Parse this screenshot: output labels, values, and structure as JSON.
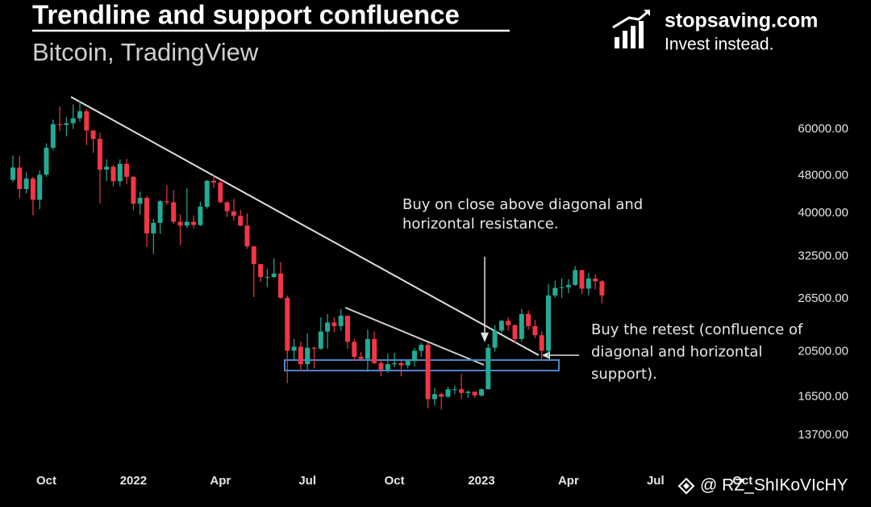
{
  "chart_data": {
    "type": "candlestick",
    "title": "Trendline and support confluence",
    "subtitle": "Bitcoin, TradingView",
    "brand": {
      "name": "stopsaving.com",
      "tagline": "Invest instead."
    },
    "watermark": "@ RZ_ShIKoVIcHY",
    "annotations": [
      {
        "lines": [
          "Buy on close above diagonal and",
          "horizontal resistance."
        ]
      },
      {
        "lines": [
          "Buy the retest (confluence of",
          "diagonal and horizontal",
          "support)."
        ]
      }
    ],
    "categories": [
      null,
      null,
      null,
      null,
      null,
      "Oct",
      null,
      null,
      null,
      null,
      null,
      null,
      null,
      null,
      null,
      null,
      null,
      null,
      "2022",
      null,
      null,
      null,
      null,
      null,
      null,
      null,
      null,
      null,
      null,
      null,
      null,
      "Apr",
      null,
      null,
      null,
      null,
      null,
      null,
      null,
      null,
      null,
      null,
      null,
      null,
      "Jul",
      null,
      null,
      null,
      null,
      null,
      null,
      null,
      null,
      null,
      null,
      null,
      null,
      "Oct",
      null,
      null,
      null,
      null,
      null,
      null,
      null,
      null,
      null,
      null,
      null,
      null,
      "2023",
      null,
      null,
      null,
      null,
      null,
      null,
      null,
      null,
      null,
      null,
      null,
      null,
      "Apr",
      null,
      null,
      null,
      null,
      null,
      null,
      null,
      null,
      null,
      null,
      null,
      null,
      "Jul",
      null,
      null,
      null,
      null,
      null,
      null,
      null,
      null,
      null,
      null,
      null,
      null,
      "Oct"
    ],
    "open": [
      47000,
      49900,
      45000,
      47300,
      42700,
      48200,
      54900,
      61500,
      61300,
      61800,
      63300,
      65500,
      59700,
      57300,
      49400,
      50100,
      46700,
      50800,
      47700,
      41900,
      43100,
      36300,
      38200,
      42400,
      42200,
      38400,
      37700,
      38400,
      37800,
      41300,
      46800,
      46400,
      42200,
      40400,
      39500,
      37700,
      34100,
      31300,
      29400,
      29400,
      29900,
      26600,
      20600,
      21000,
      19300,
      20900,
      20800,
      22600,
      23600,
      23200,
      24400,
      21500,
      20000,
      19800,
      21800,
      19400,
      18800,
      19300,
      19400,
      19200,
      19600,
      20600,
      21200,
      16300,
      16700,
      16500,
      17100,
      17100,
      16800,
      16900,
      16600,
      17100,
      20900,
      22700,
      23800,
      23300,
      21800,
      24600,
      23200,
      22200,
      20600,
      26900,
      27900,
      28000,
      28300,
      30400,
      27800,
      29200,
      28800,
      null,
      null,
      null,
      null,
      null,
      null,
      null,
      null,
      null,
      null,
      null,
      null,
      null,
      null,
      null,
      null,
      null,
      null,
      null,
      null,
      null
    ],
    "high": [
      52900,
      52800,
      48800,
      47700,
      49200,
      56100,
      62900,
      67000,
      63700,
      67700,
      69000,
      66300,
      59500,
      59000,
      51900,
      50600,
      51900,
      52000,
      47900,
      44400,
      43500,
      38900,
      42600,
      45800,
      44700,
      39800,
      45100,
      39600,
      42300,
      47000,
      48200,
      47000,
      42400,
      42900,
      40700,
      40000,
      34200,
      31300,
      30600,
      32200,
      31600,
      26900,
      21800,
      21500,
      22400,
      21000,
      24200,
      24600,
      24200,
      25200,
      24400,
      21800,
      20500,
      22800,
      22600,
      19700,
      20300,
      20400,
      19600,
      19700,
      20900,
      21400,
      21400,
      17200,
      16800,
      17300,
      17400,
      18400,
      17000,
      16900,
      17200,
      21300,
      23300,
      23900,
      24200,
      23400,
      25200,
      25000,
      23900,
      22600,
      28400,
      28900,
      29200,
      29100,
      31000,
      30500,
      30000,
      29800,
      29000,
      null,
      null,
      null,
      null,
      null,
      null,
      null,
      null,
      null,
      null,
      null,
      null,
      null,
      null,
      null,
      null,
      null,
      null,
      null,
      null,
      null
    ],
    "low": [
      46500,
      43000,
      44000,
      39600,
      40800,
      47700,
      54200,
      59500,
      58000,
      60100,
      62300,
      55600,
      53600,
      42000,
      46700,
      45500,
      45600,
      46000,
      40600,
      39700,
      34000,
      32900,
      36200,
      41700,
      38000,
      34300,
      37200,
      37200,
      37600,
      40900,
      45200,
      42000,
      39300,
      38600,
      37600,
      33700,
      26700,
      28700,
      28000,
      29300,
      26500,
      17600,
      19700,
      18700,
      18800,
      18900,
      20700,
      20800,
      22500,
      22700,
      20800,
      19600,
      19600,
      18600,
      19300,
      18200,
      18500,
      19000,
      18200,
      18900,
      19100,
      20000,
      15600,
      15800,
      15500,
      16400,
      16700,
      16300,
      16400,
      16400,
      16500,
      17100,
      20500,
      22300,
      22700,
      21400,
      21500,
      22800,
      21900,
      19600,
      20000,
      26600,
      26600,
      27200,
      28200,
      27100,
      26900,
      27700,
      25900,
      null,
      null,
      null,
      null,
      null,
      null,
      null,
      null,
      null,
      null,
      null,
      null,
      null,
      null,
      null,
      null,
      null,
      null,
      null,
      null,
      null
    ],
    "close": [
      49900,
      45000,
      47300,
      42700,
      48200,
      54900,
      61500,
      61300,
      61800,
      63300,
      65500,
      59700,
      57300,
      49400,
      50100,
      46700,
      50800,
      47700,
      41900,
      43100,
      36300,
      38200,
      42400,
      42200,
      38400,
      37700,
      38400,
      37800,
      41300,
      46800,
      46400,
      42200,
      40400,
      39500,
      37700,
      34100,
      31300,
      29400,
      29400,
      29900,
      26600,
      20600,
      21000,
      19300,
      20900,
      20800,
      22600,
      23600,
      23200,
      24400,
      21500,
      20000,
      19800,
      21800,
      19400,
      18800,
      19300,
      19400,
      19200,
      19600,
      20600,
      21200,
      16300,
      16700,
      16500,
      17100,
      17100,
      16800,
      16900,
      16600,
      17100,
      20900,
      22700,
      23800,
      23300,
      21800,
      24600,
      23200,
      22200,
      20600,
      26900,
      27900,
      28000,
      28300,
      30400,
      27800,
      29200,
      28800,
      26900,
      null,
      null,
      null,
      null,
      null,
      null,
      null,
      null,
      null,
      null,
      null,
      null,
      null,
      null,
      null,
      null,
      null,
      null,
      null,
      null,
      null
    ],
    "up_color": "#22ab94",
    "down_color": "#f23645",
    "log_scale": true,
    "ylim": [
      12000,
      75000
    ],
    "yticks": [
      {
        "value": 13700,
        "label": "13700.00"
      },
      {
        "value": 16500,
        "label": "16500.00"
      },
      {
        "value": 20500,
        "label": "20500.00"
      },
      {
        "value": 26500,
        "label": "26500.00"
      },
      {
        "value": 32500,
        "label": "32500.00"
      },
      {
        "value": 40000,
        "label": "40000.00"
      },
      {
        "value": 48000,
        "label": "48000.00"
      },
      {
        "value": 60000,
        "label": "60000.00"
      }
    ],
    "grid": false
  }
}
